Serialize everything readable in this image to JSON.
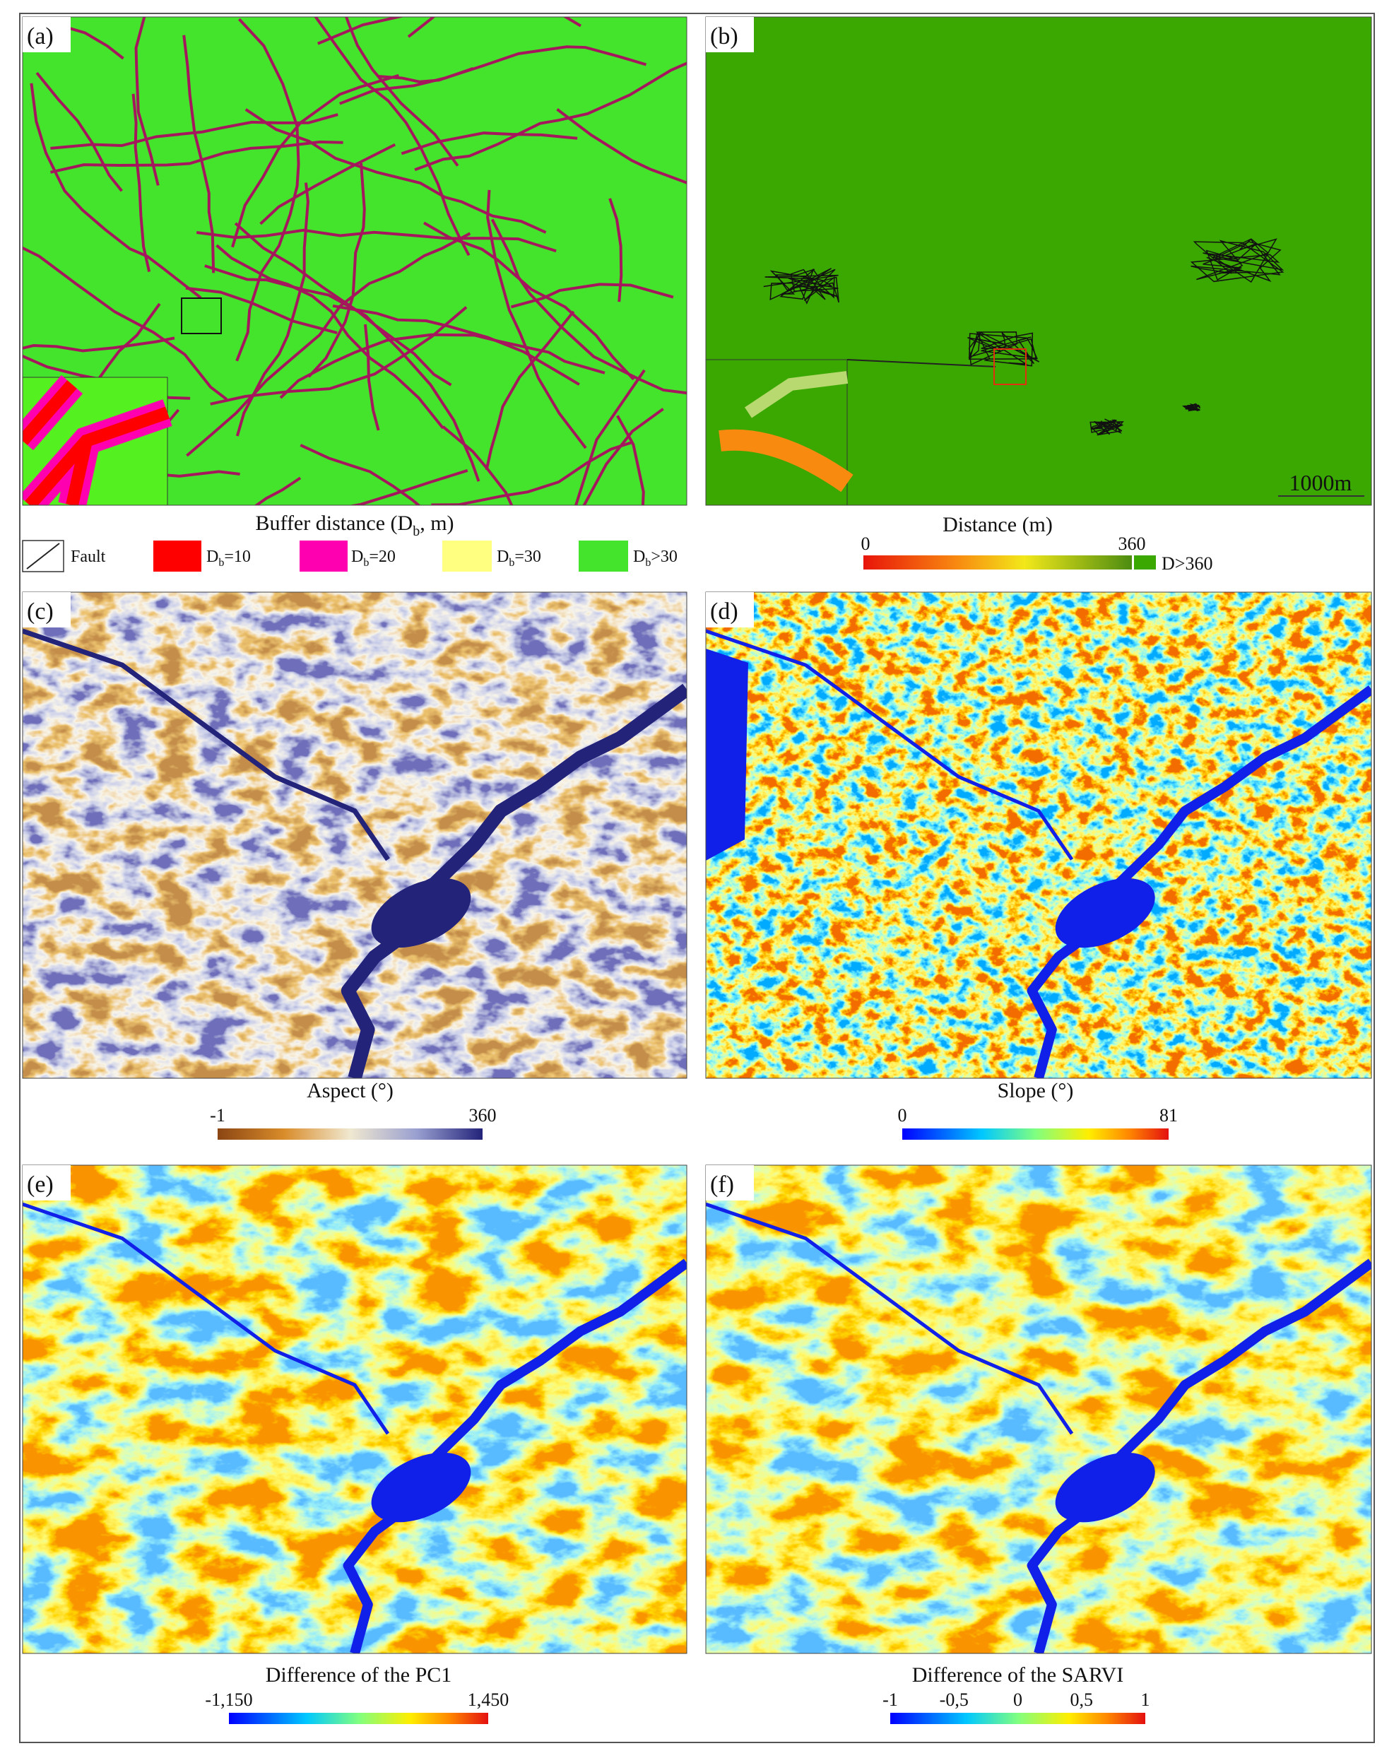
{
  "panel_a": {
    "label": "(a)",
    "legend_title": {
      "main": "Buffer distance (D",
      "sub": "b",
      "tail": ", m)"
    },
    "legend": [
      {
        "main": "Fault"
      },
      {
        "main": "D",
        "sub": "b",
        "tail": "=10"
      },
      {
        "main": "D",
        "sub": "b",
        "tail": "=20"
      },
      {
        "main": "D",
        "sub": "b",
        "tail": "=30"
      },
      {
        "main": "D",
        "sub": "b",
        "tail": ">30"
      }
    ]
  },
  "panel_b": {
    "label": "(b)",
    "scale_bar": "1000m",
    "colorbar_title": "Distance (m)",
    "colorbar_ticks": [
      "0",
      "360"
    ],
    "extra_label": "D>360"
  },
  "panel_c": {
    "label": "(c)",
    "colorbar_title": "Aspect (°)",
    "colorbar_ticks": [
      "-1",
      "360"
    ]
  },
  "panel_d": {
    "label": "(d)",
    "colorbar_title": "Slope (°)",
    "colorbar_ticks": [
      "0",
      "81"
    ]
  },
  "panel_e": {
    "label": "(e)",
    "colorbar_title": "Difference of the PC1",
    "colorbar_ticks": [
      "-1,150",
      "1,450"
    ]
  },
  "panel_f": {
    "label": "(f)",
    "colorbar_title": "Difference of the SARVI",
    "colorbar_ticks": [
      "-1",
      "-0,5",
      "0",
      "0,5",
      "1"
    ]
  }
}
